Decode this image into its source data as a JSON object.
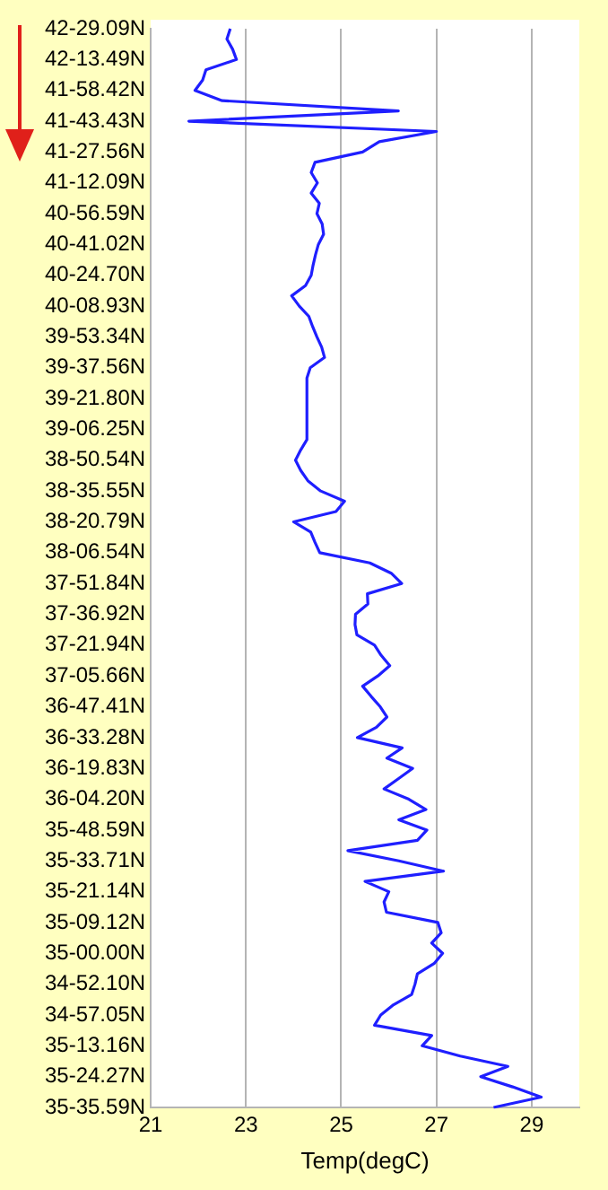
{
  "chart_data": {
    "type": "line",
    "orientation": "horizontal",
    "xlabel": "Temp(degC)",
    "xlim": [
      21,
      30
    ],
    "xticks": [
      21,
      23,
      25,
      27,
      29
    ],
    "categories": [
      "42-29.09N",
      null,
      null,
      "42-13.49N",
      null,
      null,
      "41-58.42N",
      null,
      null,
      "41-43.43N",
      null,
      null,
      "41-27.56N",
      null,
      null,
      "41-12.09N",
      null,
      null,
      "40-56.59N",
      null,
      null,
      "40-41.02N",
      null,
      null,
      "40-24.70N",
      null,
      null,
      "40-08.93N",
      null,
      null,
      "39-53.34N",
      null,
      null,
      "39-37.56N",
      null,
      null,
      "39-21.80N",
      null,
      null,
      "39-06.25N",
      null,
      null,
      "38-50.54N",
      null,
      null,
      "38-35.55N",
      null,
      null,
      "38-20.79N",
      null,
      null,
      "38-06.54N",
      null,
      null,
      "37-51.84N",
      null,
      null,
      "37-36.92N",
      null,
      null,
      "37-21.94N",
      null,
      null,
      "37-05.66N",
      null,
      null,
      "36-47.41N",
      null,
      null,
      "36-33.28N",
      null,
      null,
      "36-19.83N",
      null,
      null,
      "36-04.20N",
      null,
      null,
      "35-48.59N",
      null,
      null,
      "35-33.71N",
      null,
      null,
      "35-21.14N",
      null,
      null,
      "35-09.12N",
      null,
      null,
      "35-00.00N",
      null,
      null,
      "34-52.10N",
      null,
      null,
      "34-57.05N",
      null,
      null,
      "35-13.16N",
      null,
      null,
      "35-24.27N",
      null,
      null,
      "35-35.59N"
    ],
    "grid": "x",
    "legend": false,
    "marker": "none",
    "line_style": "solid",
    "series": [
      {
        "color": "#1f1fff",
        "values": [
          22.67,
          22.6,
          22.72,
          22.8,
          22.16,
          22.09,
          21.93,
          22.5,
          26.2,
          21.8,
          27.0,
          25.8,
          25.45,
          24.45,
          24.37,
          24.5,
          24.37,
          24.54,
          24.49,
          24.6,
          24.63,
          24.52,
          24.46,
          24.41,
          24.37,
          24.25,
          23.96,
          24.12,
          24.32,
          24.4,
          24.49,
          24.59,
          24.65,
          24.35,
          24.28,
          24.28,
          24.28,
          24.28,
          24.28,
          24.28,
          24.28,
          24.15,
          24.04,
          24.15,
          24.3,
          24.57,
          25.07,
          24.89,
          24.0,
          24.36,
          24.45,
          24.55,
          25.6,
          26.05,
          26.27,
          25.55,
          25.56,
          25.3,
          25.29,
          25.33,
          25.7,
          25.84,
          26.02,
          25.77,
          25.45,
          25.63,
          25.82,
          25.96,
          25.74,
          25.34,
          26.28,
          25.96,
          26.5,
          26.2,
          25.9,
          26.42,
          26.78,
          26.21,
          26.8,
          26.6,
          25.14,
          26.21,
          27.15,
          25.5,
          26.0,
          25.9,
          25.95,
          27.03,
          27.1,
          26.9,
          27.13,
          26.95,
          26.6,
          26.55,
          26.48,
          26.1,
          25.83,
          25.7,
          26.9,
          26.7,
          27.5,
          28.5,
          27.93,
          28.6,
          29.2,
          28.2
        ]
      }
    ]
  }
}
